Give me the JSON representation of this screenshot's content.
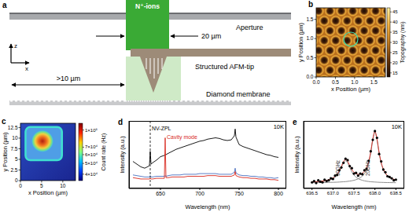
{
  "panels": {
    "a": {
      "label": "a",
      "ions": "N⁺-ions",
      "aperture": "Aperture",
      "aperture_width": "20 µm",
      "tip": "Structured AFM-tip",
      "membrane": "Diamond membrane",
      "distance": ">10 µm",
      "axes": {
        "vertical": "z",
        "horizontal": "x"
      }
    },
    "b": {
      "label": "b",
      "xlabel": "x Position (µm)",
      "ylabel": "y Position (µm)",
      "xlim": [
        0,
        1.8
      ],
      "ylim": [
        0,
        1.8
      ],
      "xticks": [
        {
          "value": 0,
          "label": "0.0"
        },
        0.5,
        {
          "value": 1,
          "label": "1.0"
        },
        1.5
      ],
      "yticks": [
        {
          "value": 0,
          "label": "0.0"
        },
        0.5,
        {
          "value": 1,
          "label": "1.0"
        },
        1.5
      ],
      "colorbar": {
        "label": "Topography (nm)",
        "lim": [
          13,
          47
        ],
        "ticks": [
          15,
          20,
          25,
          30,
          35,
          40,
          45
        ]
      }
    },
    "c": {
      "label": "c",
      "xlabel": "x Position (µm)",
      "ylabel": "y Position (µm)",
      "xlim": [
        0,
        13
      ],
      "ylim": [
        0,
        13.5
      ],
      "xticks": [
        0,
        5,
        10
      ],
      "yticks": [
        0,
        2.5,
        5,
        7.5,
        10,
        12.5
      ],
      "colorbar": {
        "label": "Count rate (Hz)",
        "log": true,
        "lim": [
          35000,
          115000
        ],
        "ticks": [
          {
            "value": 40000,
            "label": "4×10⁴"
          },
          {
            "value": 50000,
            "label": "5×10⁴"
          },
          {
            "value": 60000,
            "label": "6×10⁴"
          },
          {
            "value": 70000,
            "label": "7×10⁴"
          },
          {
            "value": 100000,
            "label": "1×10⁵"
          }
        ]
      }
    }
  },
  "chart_data": [
    {
      "panel_label": "d",
      "type": "line",
      "xlabel": "Wavelength (nm)",
      "ylabel": "Intensity (a.u.)",
      "xlim": [
        610,
        810
      ],
      "xticks": [
        650,
        700,
        750,
        800
      ],
      "ylim": [
        0,
        1
      ],
      "tick_labels": "x",
      "x": [
        615,
        620,
        625,
        630,
        635,
        636,
        637,
        638,
        640,
        645,
        650,
        655,
        656,
        657,
        660,
        665,
        670,
        675,
        680,
        685,
        690,
        695,
        700,
        705,
        710,
        715,
        720,
        725,
        730,
        735,
        740,
        744,
        745,
        746,
        750,
        755,
        760,
        765,
        770,
        775,
        780,
        785,
        790,
        795,
        800
      ],
      "series": [
        {
          "color": "#000000",
          "values": [
            0.4,
            0.36,
            0.32,
            0.3,
            0.33,
            0.34,
            0.55,
            0.36,
            0.38,
            0.42,
            0.47,
            0.49,
            0.5,
            0.5,
            0.52,
            0.55,
            0.58,
            0.6,
            0.62,
            0.64,
            0.66,
            0.68,
            0.7,
            0.71,
            0.73,
            0.74,
            0.75,
            0.74,
            0.72,
            0.71,
            0.72,
            0.78,
            0.88,
            0.76,
            0.65,
            0.62,
            0.6,
            0.58,
            0.56,
            0.54,
            0.52,
            0.5,
            0.49,
            0.47,
            0.46
          ]
        },
        {
          "color": "#4a6fc0",
          "values": [
            0.2,
            0.19,
            0.18,
            0.17,
            0.17,
            0.17,
            0.19,
            0.17,
            0.17,
            0.18,
            0.18,
            0.18,
            0.19,
            0.18,
            0.19,
            0.2,
            0.2,
            0.2,
            0.21,
            0.21,
            0.21,
            0.21,
            0.22,
            0.22,
            0.22,
            0.22,
            0.22,
            0.21,
            0.21,
            0.21,
            0.21,
            0.24,
            0.3,
            0.23,
            0.2,
            0.19,
            0.19,
            0.18,
            0.18,
            0.17,
            0.17,
            0.16,
            0.16,
            0.15,
            0.16
          ]
        },
        {
          "color": "#d8281e",
          "values": [
            0.16,
            0.15,
            0.14,
            0.14,
            0.14,
            0.14,
            0.15,
            0.14,
            0.14,
            0.15,
            0.15,
            0.15,
            0.75,
            0.16,
            0.16,
            0.17,
            0.17,
            0.17,
            0.17,
            0.18,
            0.18,
            0.18,
            0.18,
            0.18,
            0.19,
            0.19,
            0.19,
            0.18,
            0.18,
            0.18,
            0.18,
            0.2,
            0.25,
            0.19,
            0.17,
            0.16,
            0.16,
            0.15,
            0.15,
            0.14,
            0.14,
            0.14,
            0.13,
            0.13,
            0.12
          ]
        }
      ],
      "annotations": [
        {
          "text": "10K"
        },
        {
          "text": "NV-ZPL",
          "x": 637,
          "line_style": "dashed",
          "color": "#000000"
        },
        {
          "text": "Cavity mode",
          "x": 656,
          "color": "#d8281e"
        }
      ]
    },
    {
      "panel_label": "e",
      "type": "line",
      "xlabel": "Wavelength (nm)",
      "ylabel": "Intensity (a.u.)",
      "xlim": [
        636.3,
        638.7
      ],
      "xticks": [
        636.5,
        {
          "value": 637,
          "label": "637.0"
        },
        637.5,
        {
          "value": 638,
          "label": "638.0"
        },
        638.5
      ],
      "ylim": [
        0,
        1
      ],
      "tick_labels": "x",
      "x": [
        636.5,
        636.55,
        636.6,
        636.65,
        636.7,
        636.75,
        636.8,
        636.85,
        636.9,
        636.95,
        637,
        637.05,
        637.1,
        637.15,
        637.2,
        637.25,
        637.3,
        637.35,
        637.4,
        637.45,
        637.5,
        637.55,
        637.6,
        637.65,
        637.7,
        637.75,
        637.8,
        637.85,
        637.9,
        637.95,
        638,
        638.05,
        638.1,
        638.15,
        638.2,
        638.25,
        638.3,
        638.35,
        638.4,
        638.45,
        638.5
      ],
      "series": [
        {
          "type": "scatter",
          "marker": "circle",
          "color": "#000000",
          "values": [
            0.09,
            0.11,
            0.08,
            0.12,
            0.1,
            0.09,
            0.13,
            0.11,
            0.12,
            0.15,
            0.14,
            0.19,
            0.2,
            0.27,
            0.31,
            0.38,
            0.44,
            0.42,
            0.33,
            0.3,
            0.22,
            0.23,
            0.19,
            0.22,
            0.21,
            0.27,
            0.29,
            0.41,
            0.55,
            0.72,
            0.85,
            0.75,
            0.51,
            0.4,
            0.28,
            0.24,
            0.18,
            0.17,
            0.15,
            0.12,
            0.13
          ]
        },
        {
          "type": "line",
          "color": "#808080",
          "values": [
            0.091,
            0.093,
            0.095,
            0.097,
            0.099,
            0.103,
            0.107,
            0.113,
            0.121,
            0.131,
            0.146,
            0.167,
            0.199,
            0.245,
            0.309,
            0.377,
            0.41,
            0.377,
            0.309,
            0.245,
            0.199,
            0.167,
            0.146,
            0.131,
            0.121,
            0.113,
            0.107,
            0.103,
            0.099,
            0.097,
            0.095,
            0.093,
            0.091,
            0.09,
            0.089,
            0.088,
            0.087,
            0.087,
            0.086,
            0.086,
            0.085
          ]
        },
        {
          "type": "line",
          "color": "#808080",
          "values": [
            0.085,
            0.085,
            0.086,
            0.086,
            0.086,
            0.087,
            0.087,
            0.088,
            0.089,
            0.09,
            0.091,
            0.092,
            0.093,
            0.095,
            0.097,
            0.099,
            0.101,
            0.105,
            0.109,
            0.114,
            0.121,
            0.13,
            0.142,
            0.159,
            0.183,
            0.22,
            0.279,
            0.373,
            0.523,
            0.719,
            0.83,
            0.719,
            0.523,
            0.373,
            0.279,
            0.22,
            0.183,
            0.159,
            0.142,
            0.13,
            0.121
          ]
        },
        {
          "type": "line",
          "color": "#d8281e",
          "values": [
            0.096,
            0.098,
            0.101,
            0.103,
            0.105,
            0.11,
            0.114,
            0.121,
            0.13,
            0.141,
            0.157,
            0.179,
            0.212,
            0.26,
            0.326,
            0.396,
            0.431,
            0.402,
            0.338,
            0.279,
            0.24,
            0.217,
            0.208,
            0.21,
            0.224,
            0.253,
            0.306,
            0.396,
            0.542,
            0.736,
            0.845,
            0.732,
            0.534,
            0.383,
            0.288,
            0.228,
            0.19,
            0.166,
            0.148,
            0.136,
            0.126
          ]
        }
      ],
      "annotations": [
        {
          "text": "10K"
        },
        {
          "text": "30GHz",
          "x": 637.3
        },
        {
          "text": "20GHz",
          "x": 638
        }
      ]
    }
  ]
}
